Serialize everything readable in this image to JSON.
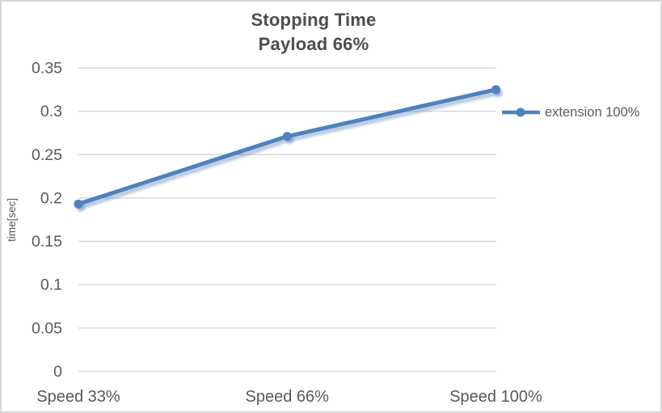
{
  "chart_data": {
    "type": "line",
    "title": "Stopping Time",
    "subtitle": "Payload 66%",
    "categories": [
      "Speed 33%",
      "Speed 66%",
      "Speed 100%"
    ],
    "series": [
      {
        "name": "extension 100%",
        "values": [
          0.193,
          0.271,
          0.325
        ]
      }
    ],
    "xlabel": "",
    "ylabel": "time[sec]",
    "ylim": [
      0,
      0.35
    ],
    "ytick_step": 0.05,
    "ytick_labels": [
      "0",
      "0.05",
      "0.1",
      "0.15",
      "0.2",
      "0.25",
      "0.3",
      "0.35"
    ],
    "grid": true,
    "legend_position": "right",
    "marker": "circle",
    "colors": {
      "line": "#4f81bd",
      "line_shadow": "rgba(79,129,189,0.40)",
      "grid": "#d9d9d9",
      "axis_text": "#595959",
      "title_text": "#4d4d4d",
      "chart_border": "#d6d6d6",
      "background": "#ffffff"
    }
  }
}
